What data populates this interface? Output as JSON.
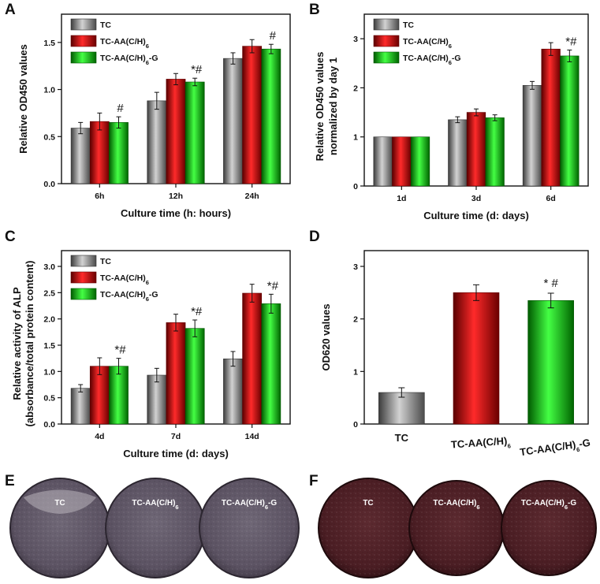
{
  "panels": [
    "A",
    "B",
    "C",
    "D",
    "E",
    "F"
  ],
  "colors": {
    "TC": "#8a8a8a",
    "TC-AA(C/H)6": "#e01010",
    "TC-AA(C/H)6-G": "#10c010"
  },
  "chart_data": [
    {
      "panel": "A",
      "type": "bar",
      "xlabel": "Culture time (h: hours)",
      "ylabel": "Relative OD450 values",
      "ylim": [
        0,
        1.8
      ],
      "yticks": [
        "0.0",
        "0.5",
        "1.0",
        "1.5"
      ],
      "categories": [
        "6h",
        "12h",
        "24h"
      ],
      "series": [
        {
          "name": "TC",
          "values": [
            0.59,
            0.88,
            1.33
          ],
          "errors": [
            0.06,
            0.09,
            0.06
          ]
        },
        {
          "name": "TC-AA(C/H)6",
          "values": [
            0.66,
            1.11,
            1.46
          ],
          "errors": [
            0.09,
            0.06,
            0.07
          ]
        },
        {
          "name": "TC-AA(C/H)6-G",
          "values": [
            0.65,
            1.08,
            1.43
          ],
          "errors": [
            0.06,
            0.04,
            0.05
          ]
        }
      ],
      "annotations": [
        "#",
        "*#",
        "#"
      ],
      "legend": "top-left"
    },
    {
      "panel": "B",
      "type": "bar",
      "xlabel": "Culture time (d: days)",
      "ylabel": "Relative OD450 values normalized by day 1",
      "ylim": [
        0,
        3.5
      ],
      "yticks": [
        "0",
        "1",
        "2",
        "3"
      ],
      "categories": [
        "1d",
        "3d",
        "6d"
      ],
      "series": [
        {
          "name": "TC",
          "values": [
            1.0,
            1.35,
            2.05
          ],
          "errors": [
            0.0,
            0.06,
            0.08
          ]
        },
        {
          "name": "TC-AA(C/H)6",
          "values": [
            1.0,
            1.5,
            2.79
          ],
          "errors": [
            0.0,
            0.07,
            0.13
          ]
        },
        {
          "name": "TC-AA(C/H)6-G",
          "values": [
            1.0,
            1.39,
            2.65
          ],
          "errors": [
            0.0,
            0.06,
            0.12
          ]
        }
      ],
      "annotations": [
        "",
        "",
        "*#"
      ],
      "legend": "top-left"
    },
    {
      "panel": "C",
      "type": "bar",
      "xlabel": "Culture time  (d: days)",
      "ylabel": "Relative activity of ALP (absorbance/total protein content)",
      "ylim": [
        0,
        3.3
      ],
      "yticks": [
        "0.0",
        "0.5",
        "1.0",
        "1.5",
        "2.0",
        "2.5",
        "3.0"
      ],
      "categories": [
        "4d",
        "7d",
        "14d"
      ],
      "series": [
        {
          "name": "TC",
          "values": [
            0.68,
            0.93,
            1.24
          ],
          "errors": [
            0.07,
            0.13,
            0.14
          ]
        },
        {
          "name": "TC-AA(C/H)6",
          "values": [
            1.1,
            1.93,
            2.49
          ],
          "errors": [
            0.16,
            0.16,
            0.17
          ]
        },
        {
          "name": "TC-AA(C/H)6-G",
          "values": [
            1.1,
            1.82,
            2.29
          ],
          "errors": [
            0.15,
            0.16,
            0.18
          ]
        }
      ],
      "annotations": [
        "*#",
        "*#",
        "*#"
      ],
      "legend": "top-left"
    },
    {
      "panel": "D",
      "type": "bar",
      "xlabel": "",
      "ylabel": "OD620 values",
      "ylim": [
        0,
        3.3
      ],
      "yticks": [
        "0",
        "1",
        "2",
        "3"
      ],
      "categories": [
        "TC",
        "TC-AA(C/H)6",
        "TC-AA(C/H)6-G"
      ],
      "values": [
        0.6,
        2.5,
        2.35
      ],
      "errors": [
        0.09,
        0.15,
        0.14
      ],
      "annotations": [
        "",
        "",
        "* #"
      ]
    }
  ],
  "dishes": {
    "E": {
      "labels": [
        "TC",
        "TC-AA(C/H)6",
        "TC-AA(C/H)6-G"
      ],
      "tone": "purple-grey"
    },
    "F": {
      "labels": [
        "TC",
        "TC-AA(C/H)6",
        "TC-AA(C/H)6-G"
      ],
      "tone": "dark-red"
    }
  }
}
